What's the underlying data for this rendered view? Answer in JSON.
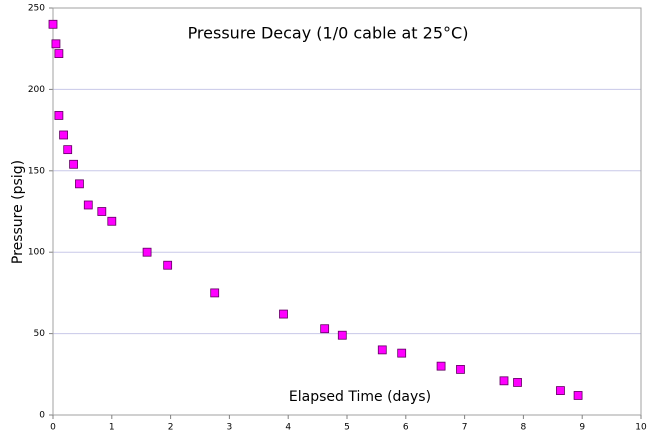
{
  "chart_data": {
    "type": "scatter",
    "title": "Pressure Decay (1/0 cable at 25°C)",
    "x_label": "Elapsed Time (days)",
    "y_label": "Pressure (psig)",
    "series": [
      {
        "name": "Pressure",
        "color": "#ff00ff",
        "x": [
          0.0,
          0.05,
          0.1,
          0.1,
          0.18,
          0.25,
          0.35,
          0.45,
          0.6,
          0.83,
          1.0,
          1.6,
          1.95,
          2.75,
          3.92,
          4.62,
          4.92,
          5.6,
          5.93,
          6.6,
          6.93,
          7.67,
          7.9,
          8.63,
          8.93
        ],
        "values": [
          240,
          228,
          222,
          184,
          172,
          163,
          154,
          142,
          129,
          125,
          119,
          100,
          92,
          75,
          62,
          53,
          49,
          40,
          38,
          30,
          28,
          21,
          20,
          15,
          12
        ]
      }
    ],
    "xlim": [
      0,
      10
    ],
    "xticks": [
      0,
      1,
      2,
      3,
      4,
      5,
      6,
      7,
      8,
      9,
      10
    ],
    "ylim": [
      0,
      250
    ],
    "yticks": [
      0,
      50,
      100,
      150,
      200,
      250
    ],
    "grid": true
  }
}
